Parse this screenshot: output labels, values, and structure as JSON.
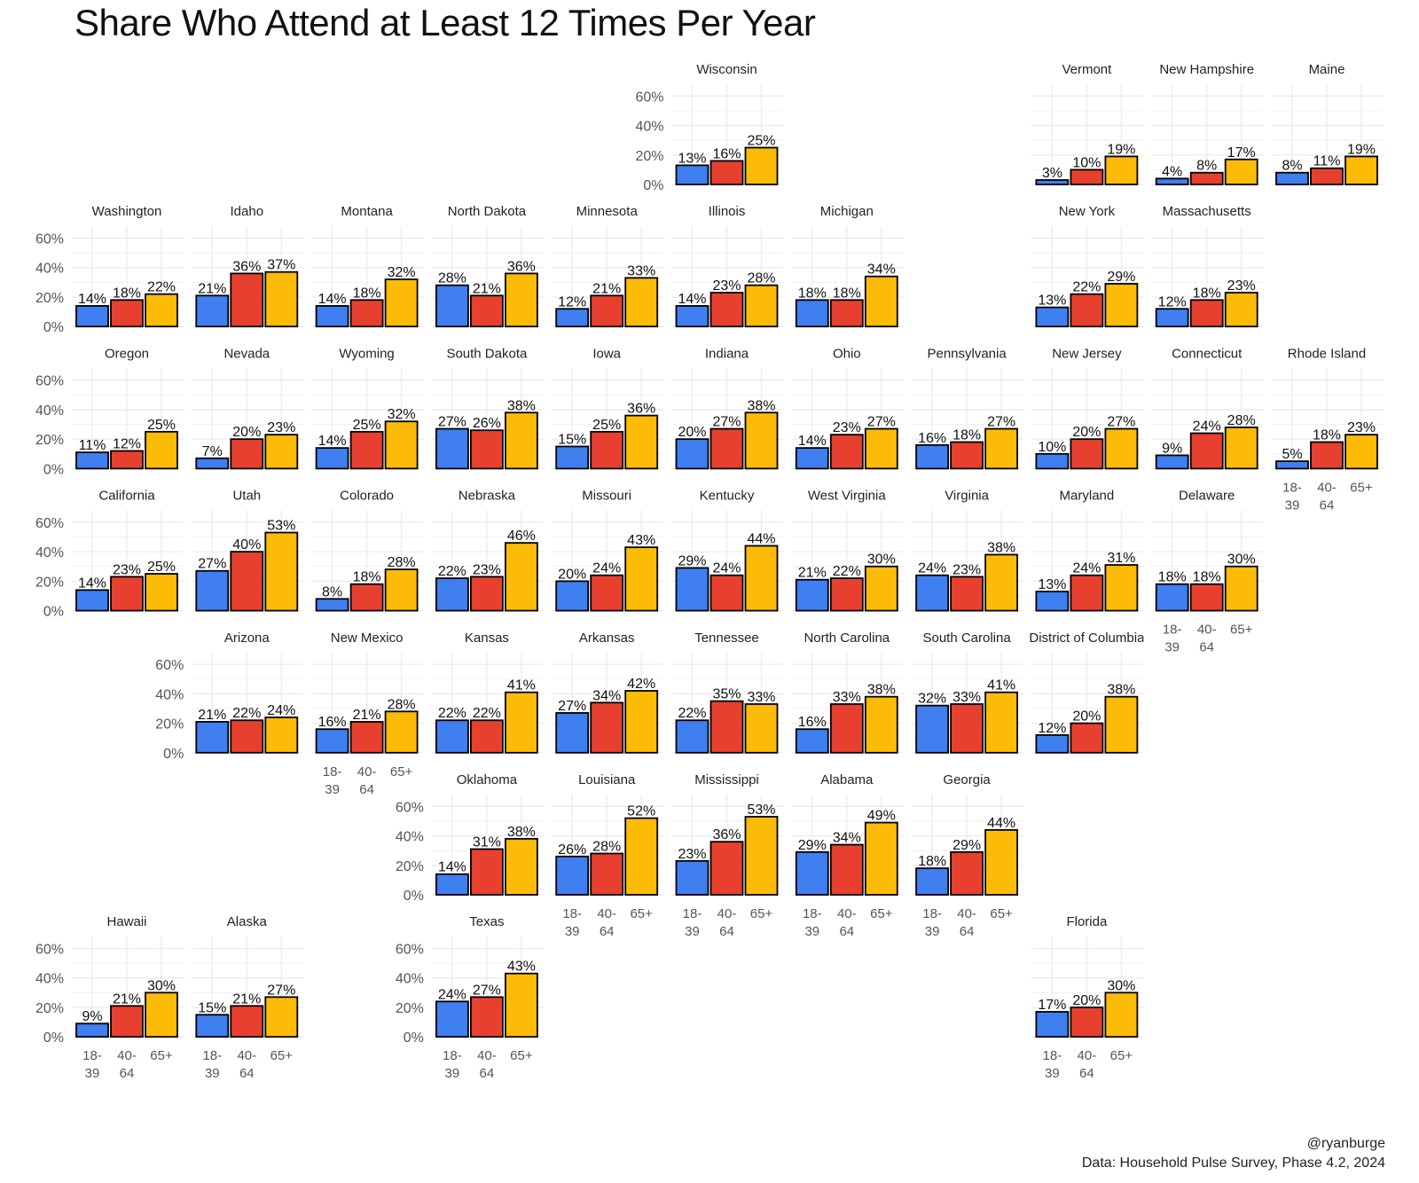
{
  "chart_data": {
    "type": "bar",
    "title": "Share Who Attend at Least 12 Times Per Year",
    "categories": [
      "18-39",
      "40-64",
      "65+"
    ],
    "category_lines": [
      [
        "18-",
        "39"
      ],
      [
        "40-",
        "64"
      ],
      [
        "65+"
      ]
    ],
    "colors": [
      "#3f7ff0",
      "#e8402f",
      "#fbbb07"
    ],
    "y_ticks": [
      "0%",
      "20%",
      "40%",
      "60%"
    ],
    "ylim": [
      0,
      68
    ],
    "grid": true,
    "states": [
      {
        "name": "Wisconsin",
        "values": [
          13,
          16,
          25
        ],
        "col": 5,
        "row": 0,
        "ylab": true,
        "xlab": false
      },
      {
        "name": "Vermont",
        "values": [
          3,
          10,
          19
        ],
        "col": 8,
        "row": 0,
        "ylab": false,
        "xlab": false
      },
      {
        "name": "New Hampshire",
        "values": [
          4,
          8,
          17
        ],
        "col": 9,
        "row": 0,
        "ylab": false,
        "xlab": false
      },
      {
        "name": "Maine",
        "values": [
          8,
          11,
          19
        ],
        "col": 10,
        "row": 0,
        "ylab": false,
        "xlab": false
      },
      {
        "name": "Washington",
        "values": [
          14,
          18,
          22
        ],
        "col": 0,
        "row": 1,
        "ylab": true,
        "xlab": false
      },
      {
        "name": "Idaho",
        "values": [
          21,
          36,
          37
        ],
        "col": 1,
        "row": 1,
        "ylab": false,
        "xlab": false
      },
      {
        "name": "Montana",
        "values": [
          14,
          18,
          32
        ],
        "col": 2,
        "row": 1,
        "ylab": false,
        "xlab": false
      },
      {
        "name": "North Dakota",
        "values": [
          28,
          21,
          36
        ],
        "col": 3,
        "row": 1,
        "ylab": false,
        "xlab": false
      },
      {
        "name": "Minnesota",
        "values": [
          12,
          21,
          33
        ],
        "col": 4,
        "row": 1,
        "ylab": false,
        "xlab": false
      },
      {
        "name": "Illinois",
        "values": [
          14,
          23,
          28
        ],
        "col": 5,
        "row": 1,
        "ylab": false,
        "xlab": false
      },
      {
        "name": "Michigan",
        "values": [
          18,
          18,
          34
        ],
        "col": 6,
        "row": 1,
        "ylab": false,
        "xlab": false
      },
      {
        "name": "New York",
        "values": [
          13,
          22,
          29
        ],
        "col": 8,
        "row": 1,
        "ylab": false,
        "xlab": false
      },
      {
        "name": "Massachusetts",
        "values": [
          12,
          18,
          23
        ],
        "col": 9,
        "row": 1,
        "ylab": false,
        "xlab": false
      },
      {
        "name": "Oregon",
        "values": [
          11,
          12,
          25
        ],
        "col": 0,
        "row": 2,
        "ylab": true,
        "xlab": false
      },
      {
        "name": "Nevada",
        "values": [
          7,
          20,
          23
        ],
        "col": 1,
        "row": 2,
        "ylab": false,
        "xlab": false
      },
      {
        "name": "Wyoming",
        "values": [
          14,
          25,
          32
        ],
        "col": 2,
        "row": 2,
        "ylab": false,
        "xlab": false
      },
      {
        "name": "South Dakota",
        "values": [
          27,
          26,
          38
        ],
        "col": 3,
        "row": 2,
        "ylab": false,
        "xlab": false
      },
      {
        "name": "Iowa",
        "values": [
          15,
          25,
          36
        ],
        "col": 4,
        "row": 2,
        "ylab": false,
        "xlab": false
      },
      {
        "name": "Indiana",
        "values": [
          20,
          27,
          38
        ],
        "col": 5,
        "row": 2,
        "ylab": false,
        "xlab": false
      },
      {
        "name": "Ohio",
        "values": [
          14,
          23,
          27
        ],
        "col": 6,
        "row": 2,
        "ylab": false,
        "xlab": false
      },
      {
        "name": "Pennsylvania",
        "values": [
          16,
          18,
          27
        ],
        "col": 7,
        "row": 2,
        "ylab": false,
        "xlab": false
      },
      {
        "name": "New Jersey",
        "values": [
          10,
          20,
          27
        ],
        "col": 8,
        "row": 2,
        "ylab": false,
        "xlab": false
      },
      {
        "name": "Connecticut",
        "values": [
          9,
          24,
          28
        ],
        "col": 9,
        "row": 2,
        "ylab": false,
        "xlab": false
      },
      {
        "name": "Rhode Island",
        "values": [
          5,
          18,
          23
        ],
        "col": 10,
        "row": 2,
        "ylab": false,
        "xlab": true
      },
      {
        "name": "California",
        "values": [
          14,
          23,
          25
        ],
        "col": 0,
        "row": 3,
        "ylab": true,
        "xlab": false
      },
      {
        "name": "Utah",
        "values": [
          27,
          40,
          53
        ],
        "col": 1,
        "row": 3,
        "ylab": false,
        "xlab": false
      },
      {
        "name": "Colorado",
        "values": [
          8,
          18,
          28
        ],
        "col": 2,
        "row": 3,
        "ylab": false,
        "xlab": false
      },
      {
        "name": "Nebraska",
        "values": [
          22,
          23,
          46
        ],
        "col": 3,
        "row": 3,
        "ylab": false,
        "xlab": false
      },
      {
        "name": "Missouri",
        "values": [
          20,
          24,
          43
        ],
        "col": 4,
        "row": 3,
        "ylab": false,
        "xlab": false
      },
      {
        "name": "Kentucky",
        "values": [
          29,
          24,
          44
        ],
        "col": 5,
        "row": 3,
        "ylab": false,
        "xlab": false
      },
      {
        "name": "West Virginia",
        "values": [
          21,
          22,
          30
        ],
        "col": 6,
        "row": 3,
        "ylab": false,
        "xlab": false
      },
      {
        "name": "Virginia",
        "values": [
          24,
          23,
          38
        ],
        "col": 7,
        "row": 3,
        "ylab": false,
        "xlab": false
      },
      {
        "name": "Maryland",
        "values": [
          13,
          24,
          31
        ],
        "col": 8,
        "row": 3,
        "ylab": false,
        "xlab": false
      },
      {
        "name": "Delaware",
        "values": [
          18,
          18,
          30
        ],
        "col": 9,
        "row": 3,
        "ylab": false,
        "xlab": true
      },
      {
        "name": "Arizona",
        "values": [
          21,
          22,
          24
        ],
        "col": 1,
        "row": 4,
        "ylab": true,
        "xlab": false
      },
      {
        "name": "New Mexico",
        "values": [
          16,
          21,
          28
        ],
        "col": 2,
        "row": 4,
        "ylab": false,
        "xlab": true
      },
      {
        "name": "Kansas",
        "values": [
          22,
          22,
          41
        ],
        "col": 3,
        "row": 4,
        "ylab": false,
        "xlab": false
      },
      {
        "name": "Arkansas",
        "values": [
          27,
          34,
          42
        ],
        "col": 4,
        "row": 4,
        "ylab": false,
        "xlab": false
      },
      {
        "name": "Tennessee",
        "values": [
          22,
          35,
          33
        ],
        "col": 5,
        "row": 4,
        "ylab": false,
        "xlab": false
      },
      {
        "name": "North Carolina",
        "values": [
          16,
          33,
          38
        ],
        "col": 6,
        "row": 4,
        "ylab": false,
        "xlab": false
      },
      {
        "name": "South Carolina",
        "values": [
          32,
          33,
          41
        ],
        "col": 7,
        "row": 4,
        "ylab": false,
        "xlab": false
      },
      {
        "name": "District of Columbia",
        "values": [
          12,
          20,
          38
        ],
        "col": 8,
        "row": 4,
        "ylab": false,
        "xlab": false
      },
      {
        "name": "Oklahoma",
        "values": [
          14,
          31,
          38
        ],
        "col": 3,
        "row": 5,
        "ylab": true,
        "xlab": false
      },
      {
        "name": "Louisiana",
        "values": [
          26,
          28,
          52
        ],
        "col": 4,
        "row": 5,
        "ylab": false,
        "xlab": true
      },
      {
        "name": "Mississippi",
        "values": [
          23,
          36,
          53
        ],
        "col": 5,
        "row": 5,
        "ylab": false,
        "xlab": true
      },
      {
        "name": "Alabama",
        "values": [
          29,
          34,
          49
        ],
        "col": 6,
        "row": 5,
        "ylab": false,
        "xlab": true
      },
      {
        "name": "Georgia",
        "values": [
          18,
          29,
          44
        ],
        "col": 7,
        "row": 5,
        "ylab": false,
        "xlab": true
      },
      {
        "name": "Hawaii",
        "values": [
          9,
          21,
          30
        ],
        "col": 0,
        "row": 6,
        "ylab": true,
        "xlab": true
      },
      {
        "name": "Alaska",
        "values": [
          15,
          21,
          27
        ],
        "col": 1,
        "row": 6,
        "ylab": false,
        "xlab": true
      },
      {
        "name": "Texas",
        "values": [
          24,
          27,
          43
        ],
        "col": 3,
        "row": 6,
        "ylab": true,
        "xlab": true
      },
      {
        "name": "Florida",
        "values": [
          17,
          20,
          30
        ],
        "col": 8,
        "row": 6,
        "ylab": false,
        "xlab": true
      }
    ]
  },
  "captions": {
    "handle": "@ryanburge",
    "source": "Data: Household Pulse Survey, Phase 4.2, 2024"
  }
}
